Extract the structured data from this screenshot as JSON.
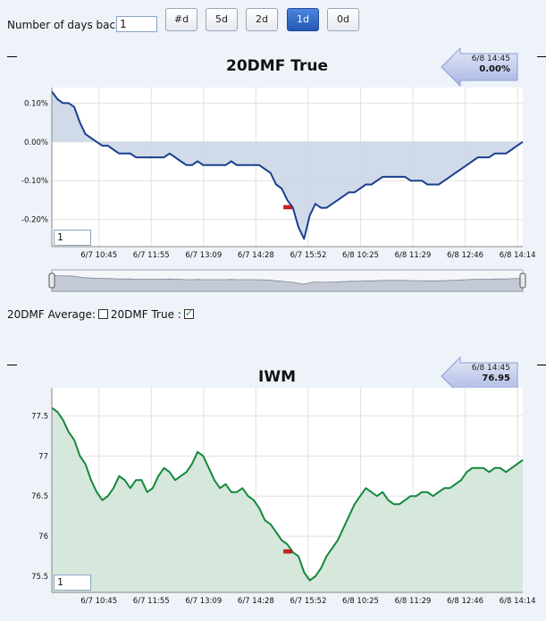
{
  "toolbar": {
    "days_back_label": "Number of days back:",
    "days_back_value": "1",
    "buttons": [
      {
        "label": "#d",
        "active": false
      },
      {
        "label": "5d",
        "active": false
      },
      {
        "label": "2d",
        "active": false
      },
      {
        "label": "1d",
        "active": true
      },
      {
        "label": "0d",
        "active": false
      }
    ]
  },
  "legend": {
    "avg_label": "20DMF Average:",
    "avg_checked": false,
    "true_label": "20DMF True :",
    "true_checked": true
  },
  "colors": {
    "line1": "#1a3f8f",
    "fill1": "#c9d3e4",
    "line2": "#14893b",
    "fill2": "#cfe3d6",
    "marker": "#d62020"
  },
  "chart_data": [
    {
      "type": "area",
      "title": "20DMF True",
      "callout": {
        "timestamp": "6/8 14:45",
        "value": "0.00%"
      },
      "input_value": "1",
      "y_ticks": [
        "0.10%",
        "0.00%",
        "-0.10%",
        "-0.20%"
      ],
      "y_tick_values": [
        0.1,
        0.0,
        -0.1,
        -0.2
      ],
      "ylim": [
        -0.27,
        0.14
      ],
      "baseline": 0.0,
      "x_ticks": [
        "6/7 10:45",
        "6/7 11:55",
        "6/7 13:09",
        "6/7 14:28",
        "6/7 15:52",
        "6/8 10:25",
        "6/8 11:29",
        "6/8 12:46",
        "6/8 14:14"
      ],
      "marker_x": 0.5,
      "series": [
        {
          "values": [
            0.13,
            0.11,
            0.1,
            0.1,
            0.09,
            0.05,
            0.02,
            0.01,
            0.0,
            -0.01,
            -0.01,
            -0.02,
            -0.03,
            -0.03,
            -0.03,
            -0.04,
            -0.04,
            -0.04,
            -0.04,
            -0.04,
            -0.04,
            -0.03,
            -0.04,
            -0.05,
            -0.06,
            -0.06,
            -0.05,
            -0.06,
            -0.06,
            -0.06,
            -0.06,
            -0.06,
            -0.05,
            -0.06,
            -0.06,
            -0.06,
            -0.06,
            -0.06,
            -0.07,
            -0.08,
            -0.11,
            -0.12,
            -0.15,
            -0.17,
            -0.22,
            -0.25,
            -0.19,
            -0.16,
            -0.17,
            -0.17,
            -0.16,
            -0.15,
            -0.14,
            -0.13,
            -0.13,
            -0.12,
            -0.11,
            -0.11,
            -0.1,
            -0.09,
            -0.09,
            -0.09,
            -0.09,
            -0.09,
            -0.1,
            -0.1,
            -0.1,
            -0.11,
            -0.11,
            -0.11,
            -0.1,
            -0.09,
            -0.08,
            -0.07,
            -0.06,
            -0.05,
            -0.04,
            -0.04,
            -0.04,
            -0.03,
            -0.03,
            -0.03,
            -0.02,
            -0.01,
            0.0
          ]
        }
      ]
    },
    {
      "type": "area",
      "title": "IWM",
      "callout": {
        "timestamp": "6/8 14:45",
        "value": "76.95"
      },
      "input_value": "1",
      "y_ticks": [
        "77.5",
        "77",
        "76.5",
        "76",
        "75.5"
      ],
      "y_tick_values": [
        77.5,
        77.0,
        76.5,
        76.0,
        75.5
      ],
      "ylim": [
        75.3,
        77.85
      ],
      "x_ticks": [
        "6/7 10:45",
        "6/7 11:55",
        "6/7 13:09",
        "6/7 14:28",
        "6/7 15:52",
        "6/8 10:25",
        "6/8 11:29",
        "6/8 12:46",
        "6/8 14:14"
      ],
      "marker_x": 0.5,
      "series": [
        {
          "values": [
            77.6,
            77.55,
            77.45,
            77.3,
            77.2,
            77.0,
            76.9,
            76.7,
            76.55,
            76.45,
            76.5,
            76.6,
            76.75,
            76.7,
            76.6,
            76.7,
            76.7,
            76.55,
            76.6,
            76.75,
            76.85,
            76.8,
            76.7,
            76.75,
            76.8,
            76.9,
            77.05,
            77.0,
            76.85,
            76.7,
            76.6,
            76.65,
            76.55,
            76.55,
            76.6,
            76.5,
            76.45,
            76.35,
            76.2,
            76.15,
            76.05,
            75.95,
            75.9,
            75.8,
            75.75,
            75.55,
            75.45,
            75.5,
            75.6,
            75.75,
            75.85,
            75.95,
            76.1,
            76.25,
            76.4,
            76.5,
            76.6,
            76.55,
            76.5,
            76.55,
            76.45,
            76.4,
            76.4,
            76.45,
            76.5,
            76.5,
            76.55,
            76.55,
            76.5,
            76.55,
            76.6,
            76.6,
            76.65,
            76.7,
            76.8,
            76.85,
            76.85,
            76.85,
            76.8,
            76.85,
            76.85,
            76.8,
            76.85,
            76.9,
            76.95
          ]
        }
      ]
    }
  ]
}
